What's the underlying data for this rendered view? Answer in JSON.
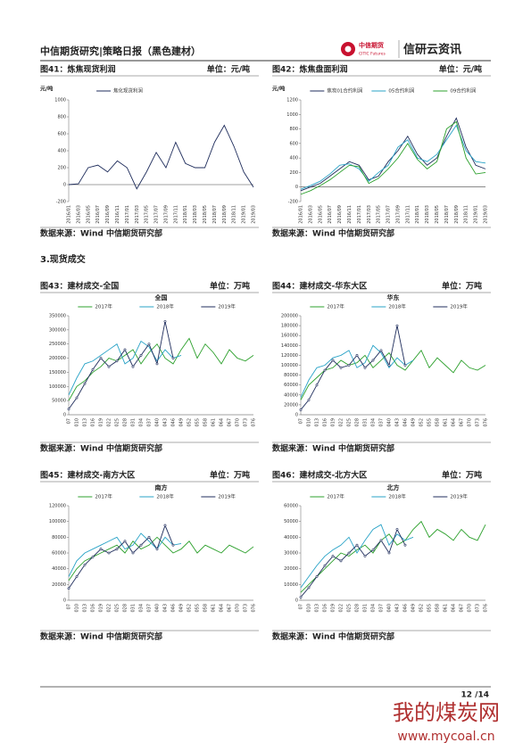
{
  "header": {
    "title": "中信期货研究|策略日报（黑色建材）",
    "logo_cn": "中信期货",
    "logo_en": "CITIC Futures",
    "brand": "信研云资讯"
  },
  "figures": [
    {
      "caption": "图41：炼焦现货利润",
      "unit": "单位：元/吨",
      "source": "数据来源：Wind  中信期货研究部"
    },
    {
      "caption": "图42：炼焦盘面利润",
      "unit": "单位：元/吨",
      "source": "数据来源：Wind  中信期货研究部"
    },
    {
      "caption": "图43：建材成交-全国",
      "unit": "单位：万吨",
      "source": "数据来源：Wind  中信期货研究部"
    },
    {
      "caption": "图44：建材成交-华东大区",
      "unit": "单位：万吨",
      "source": "数据来源：Wind  中信期货研究部"
    },
    {
      "caption": "图45：建材成交-南方大区",
      "unit": "单位：万吨",
      "source": "数据来源：Wind  中信期货研究部"
    },
    {
      "caption": "图46：建材成交-北方大区",
      "unit": "单位：万吨",
      "source": "数据来源：Wind  中信期货研究部"
    }
  ],
  "section": "3.现货成交",
  "footer": {
    "page": "12 /14"
  },
  "watermark": {
    "cn": "我的煤炭网",
    "url": "www.mycoal.cn"
  },
  "chart_data": [
    {
      "type": "line",
      "y_label": "元/吨",
      "categories": [
        "2016/01",
        "2016/03",
        "2016/05",
        "2016/07",
        "2016/09",
        "2016/11",
        "2017/01",
        "2017/03",
        "2017/05",
        "2017/07",
        "2017/09",
        "2017/11",
        "2018/01",
        "2018/03",
        "2018/05",
        "2018/07",
        "2018/09",
        "2018/11",
        "2019/01",
        "2019/03"
      ],
      "series": [
        {
          "name": "焦化现货利润",
          "color": "#1f2d5c",
          "values": [
            0,
            10,
            200,
            230,
            150,
            280,
            200,
            -50,
            150,
            380,
            200,
            500,
            250,
            200,
            200,
            500,
            700,
            450,
            150,
            -30
          ]
        }
      ],
      "ylim": [
        -200,
        1000
      ],
      "yticks": [
        -200,
        0,
        200,
        400,
        600,
        800,
        1000
      ]
    },
    {
      "type": "line",
      "y_label": "元/吨",
      "categories": [
        "2016/01",
        "2016/03",
        "2016/05",
        "2016/07",
        "2016/09",
        "2016/11",
        "2017/01",
        "2017/03",
        "2017/05",
        "2017/07",
        "2017/09",
        "2017/11",
        "2018/01",
        "2018/03",
        "2018/05",
        "2018/07",
        "2018/09",
        "2018/11",
        "2019/01",
        "2019/03"
      ],
      "series": [
        {
          "name": "焦炭01合约利润",
          "color": "#1f2d5c",
          "values": [
            -50,
            0,
            50,
            150,
            250,
            350,
            300,
            100,
            150,
            350,
            500,
            700,
            450,
            300,
            400,
            700,
            950,
            550,
            300,
            250
          ]
        },
        {
          "name": "05合约利润",
          "color": "#29a3c7",
          "values": [
            -30,
            20,
            80,
            180,
            300,
            320,
            250,
            80,
            200,
            300,
            550,
            650,
            400,
            350,
            450,
            650,
            850,
            500,
            350,
            330
          ]
        },
        {
          "name": "09合约利润",
          "color": "#2ca02c",
          "values": [
            -100,
            -50,
            20,
            100,
            200,
            300,
            280,
            50,
            120,
            250,
            400,
            600,
            380,
            250,
            350,
            800,
            900,
            400,
            180,
            200
          ]
        }
      ],
      "ylim": [
        -200,
        1200
      ],
      "yticks": [
        -200,
        0,
        200,
        400,
        600,
        800,
        1000,
        1200
      ]
    },
    {
      "type": "line",
      "title": "全国",
      "categories": [
        "07",
        "010",
        "013",
        "016",
        "019",
        "022",
        "025",
        "028",
        "031",
        "034",
        "037",
        "040",
        "043",
        "046",
        "049",
        "052",
        "055",
        "058",
        "061",
        "064",
        "067",
        "070",
        "073",
        "076"
      ],
      "series": [
        {
          "name": "2017年",
          "color": "#2ca02c",
          "values": [
            50000,
            100000,
            120000,
            150000,
            170000,
            200000,
            190000,
            210000,
            230000,
            180000,
            220000,
            250000,
            200000,
            180000,
            230000,
            270000,
            200000,
            250000,
            220000,
            180000,
            230000,
            200000,
            190000,
            210000
          ]
        },
        {
          "name": "2018年",
          "color": "#29a3c7",
          "values": [
            70000,
            130000,
            180000,
            190000,
            210000,
            230000,
            250000,
            180000,
            200000,
            260000,
            240000,
            190000,
            230000,
            200000,
            210000,
            null,
            null,
            null,
            null,
            null,
            null,
            null,
            null,
            null
          ]
        },
        {
          "name": "2019年",
          "color": "#1f2d5c",
          "marker": true,
          "values": [
            20000,
            60000,
            110000,
            160000,
            200000,
            170000,
            190000,
            230000,
            170000,
            210000,
            250000,
            180000,
            330000,
            200000,
            null,
            null,
            null,
            null,
            null,
            null,
            null,
            null,
            null,
            null
          ]
        }
      ],
      "ylim": [
        0,
        350000
      ],
      "yticks": [
        0,
        50000,
        100000,
        150000,
        200000,
        250000,
        300000,
        350000
      ]
    },
    {
      "type": "line",
      "title": "华东",
      "categories": [
        "07",
        "010",
        "013",
        "016",
        "019",
        "022",
        "025",
        "028",
        "031",
        "034",
        "037",
        "040",
        "043",
        "046",
        "049",
        "052",
        "055",
        "058",
        "061",
        "064",
        "067",
        "070",
        "073",
        "076"
      ],
      "series": [
        {
          "name": "2017年",
          "color": "#2ca02c",
          "values": [
            30000,
            60000,
            75000,
            90000,
            95000,
            110000,
            100000,
            105000,
            120000,
            95000,
            110000,
            125000,
            100000,
            90000,
            110000,
            130000,
            95000,
            115000,
            100000,
            85000,
            110000,
            95000,
            90000,
            100000
          ]
        },
        {
          "name": "2018年",
          "color": "#29a3c7",
          "values": [
            35000,
            70000,
            95000,
            100000,
            115000,
            120000,
            130000,
            95000,
            105000,
            140000,
            125000,
            95000,
            115000,
            100000,
            110000,
            null,
            null,
            null,
            null,
            null,
            null,
            null,
            null,
            null
          ]
        },
        {
          "name": "2019年",
          "color": "#1f2d5c",
          "marker": true,
          "values": [
            10000,
            30000,
            60000,
            90000,
            110000,
            95000,
            100000,
            120000,
            95000,
            110000,
            130000,
            100000,
            180000,
            100000,
            null,
            null,
            null,
            null,
            null,
            null,
            null,
            null,
            null,
            null
          ]
        }
      ],
      "ylim": [
        0,
        200000
      ],
      "yticks": [
        0,
        20000,
        40000,
        60000,
        80000,
        100000,
        120000,
        140000,
        160000,
        180000,
        200000
      ]
    },
    {
      "type": "line",
      "title": "南方",
      "categories": [
        "07",
        "010",
        "013",
        "016",
        "019",
        "022",
        "025",
        "028",
        "031",
        "034",
        "037",
        "040",
        "043",
        "046",
        "049",
        "052",
        "055",
        "058",
        "061",
        "064",
        "067",
        "070",
        "073",
        "076"
      ],
      "series": [
        {
          "name": "2017年",
          "color": "#2ca02c",
          "values": [
            25000,
            40000,
            50000,
            55000,
            60000,
            65000,
            70000,
            60000,
            75000,
            65000,
            70000,
            80000,
            70000,
            60000,
            65000,
            75000,
            60000,
            70000,
            65000,
            60000,
            70000,
            65000,
            60000,
            68000
          ]
        },
        {
          "name": "2018年",
          "color": "#29a3c7",
          "values": [
            30000,
            50000,
            60000,
            65000,
            70000,
            75000,
            80000,
            65000,
            70000,
            85000,
            75000,
            65000,
            80000,
            70000,
            72000,
            null,
            null,
            null,
            null,
            null,
            null,
            null,
            null,
            null
          ]
        },
        {
          "name": "2019年",
          "color": "#1f2d5c",
          "marker": true,
          "values": [
            15000,
            30000,
            45000,
            55000,
            65000,
            60000,
            65000,
            75000,
            60000,
            70000,
            80000,
            65000,
            95000,
            70000,
            null,
            null,
            null,
            null,
            null,
            null,
            null,
            null,
            null,
            null
          ]
        }
      ],
      "ylim": [
        0,
        120000
      ],
      "yticks": [
        0,
        20000,
        40000,
        60000,
        80000,
        100000,
        120000
      ]
    },
    {
      "type": "line",
      "title": "北方",
      "categories": [
        "07",
        "010",
        "013",
        "016",
        "019",
        "022",
        "025",
        "028",
        "031",
        "034",
        "037",
        "040",
        "043",
        "046",
        "049",
        "052",
        "055",
        "058",
        "061",
        "064",
        "067",
        "070",
        "073",
        "076"
      ],
      "series": [
        {
          "name": "2017年",
          "color": "#2ca02c",
          "values": [
            5000,
            10000,
            15000,
            20000,
            25000,
            30000,
            28000,
            32000,
            35000,
            30000,
            38000,
            42000,
            35000,
            38000,
            45000,
            50000,
            40000,
            45000,
            42000,
            38000,
            45000,
            40000,
            38000,
            48000
          ]
        },
        {
          "name": "2018年",
          "color": "#29a3c7",
          "values": [
            8000,
            15000,
            22000,
            28000,
            32000,
            35000,
            40000,
            30000,
            38000,
            45000,
            48000,
            35000,
            42000,
            38000,
            40000,
            null,
            null,
            null,
            null,
            null,
            null,
            null,
            null,
            null
          ]
        },
        {
          "name": "2019年",
          "color": "#1f2d5c",
          "marker": true,
          "values": [
            2000,
            8000,
            15000,
            22000,
            28000,
            25000,
            30000,
            35000,
            28000,
            32000,
            38000,
            30000,
            45000,
            35000,
            null,
            null,
            null,
            null,
            null,
            null,
            null,
            null,
            null,
            null
          ]
        }
      ],
      "ylim": [
        0,
        60000
      ],
      "yticks": [
        0,
        10000,
        20000,
        30000,
        40000,
        50000,
        60000
      ]
    }
  ]
}
